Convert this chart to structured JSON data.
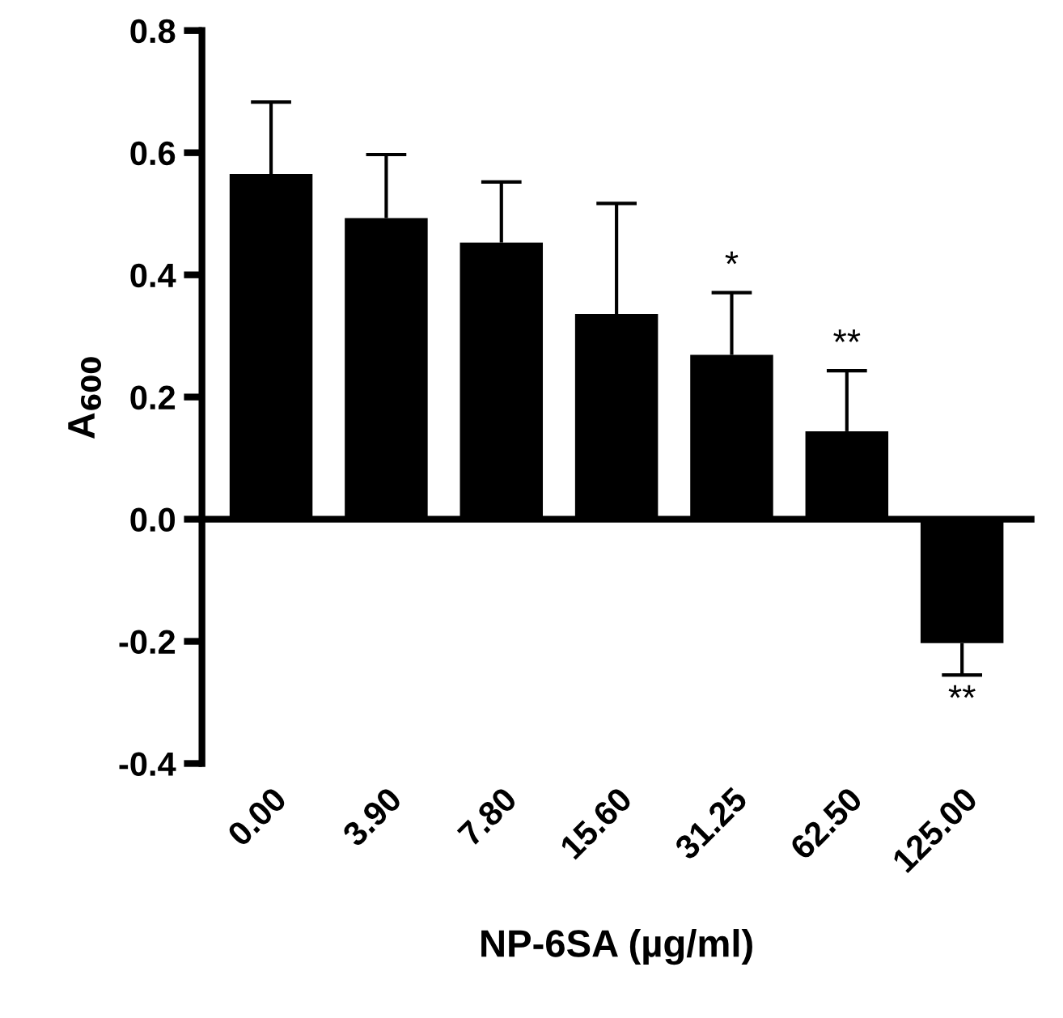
{
  "chart_data": {
    "type": "bar",
    "xlabel": "NP-6SA (µg/ml)",
    "ylabel": "A$_{600}$",
    "categories": [
      "0.00",
      "3.90",
      "7.80",
      "15.60",
      "31.25",
      "62.50",
      "125.00"
    ],
    "values": [
      0.565,
      0.493,
      0.453,
      0.336,
      0.269,
      0.144,
      -0.203
    ],
    "errors": [
      [
        0.565,
        0.683
      ],
      [
        0.493,
        0.597
      ],
      [
        0.453,
        0.552
      ],
      [
        0.336,
        0.517
      ],
      [
        0.269,
        0.371
      ],
      [
        0.144,
        0.243
      ],
      [
        -0.255,
        -0.203
      ]
    ],
    "color": "#000000",
    "ylim": [
      -0.4,
      0.8
    ],
    "yticks": [
      {
        "value": -0.4,
        "label": "-0.4"
      },
      {
        "value": -0.2,
        "label": "-0.2"
      },
      {
        "value": 0,
        "label": "0.0"
      },
      {
        "value": 0.2,
        "label": "0.2"
      },
      {
        "value": 0.4,
        "label": "0.4"
      },
      {
        "value": 0.6,
        "label": "0.6"
      },
      {
        "value": 0.8,
        "label": "0.8"
      }
    ],
    "legend": false,
    "annotations": [
      {
        "text": "*",
        "x": "31.25",
        "y": 0.371
      },
      {
        "text": "**",
        "x": "62.50",
        "y": 0.243
      },
      {
        "text": "**",
        "x": "125.00",
        "y": -0.255
      }
    ]
  }
}
